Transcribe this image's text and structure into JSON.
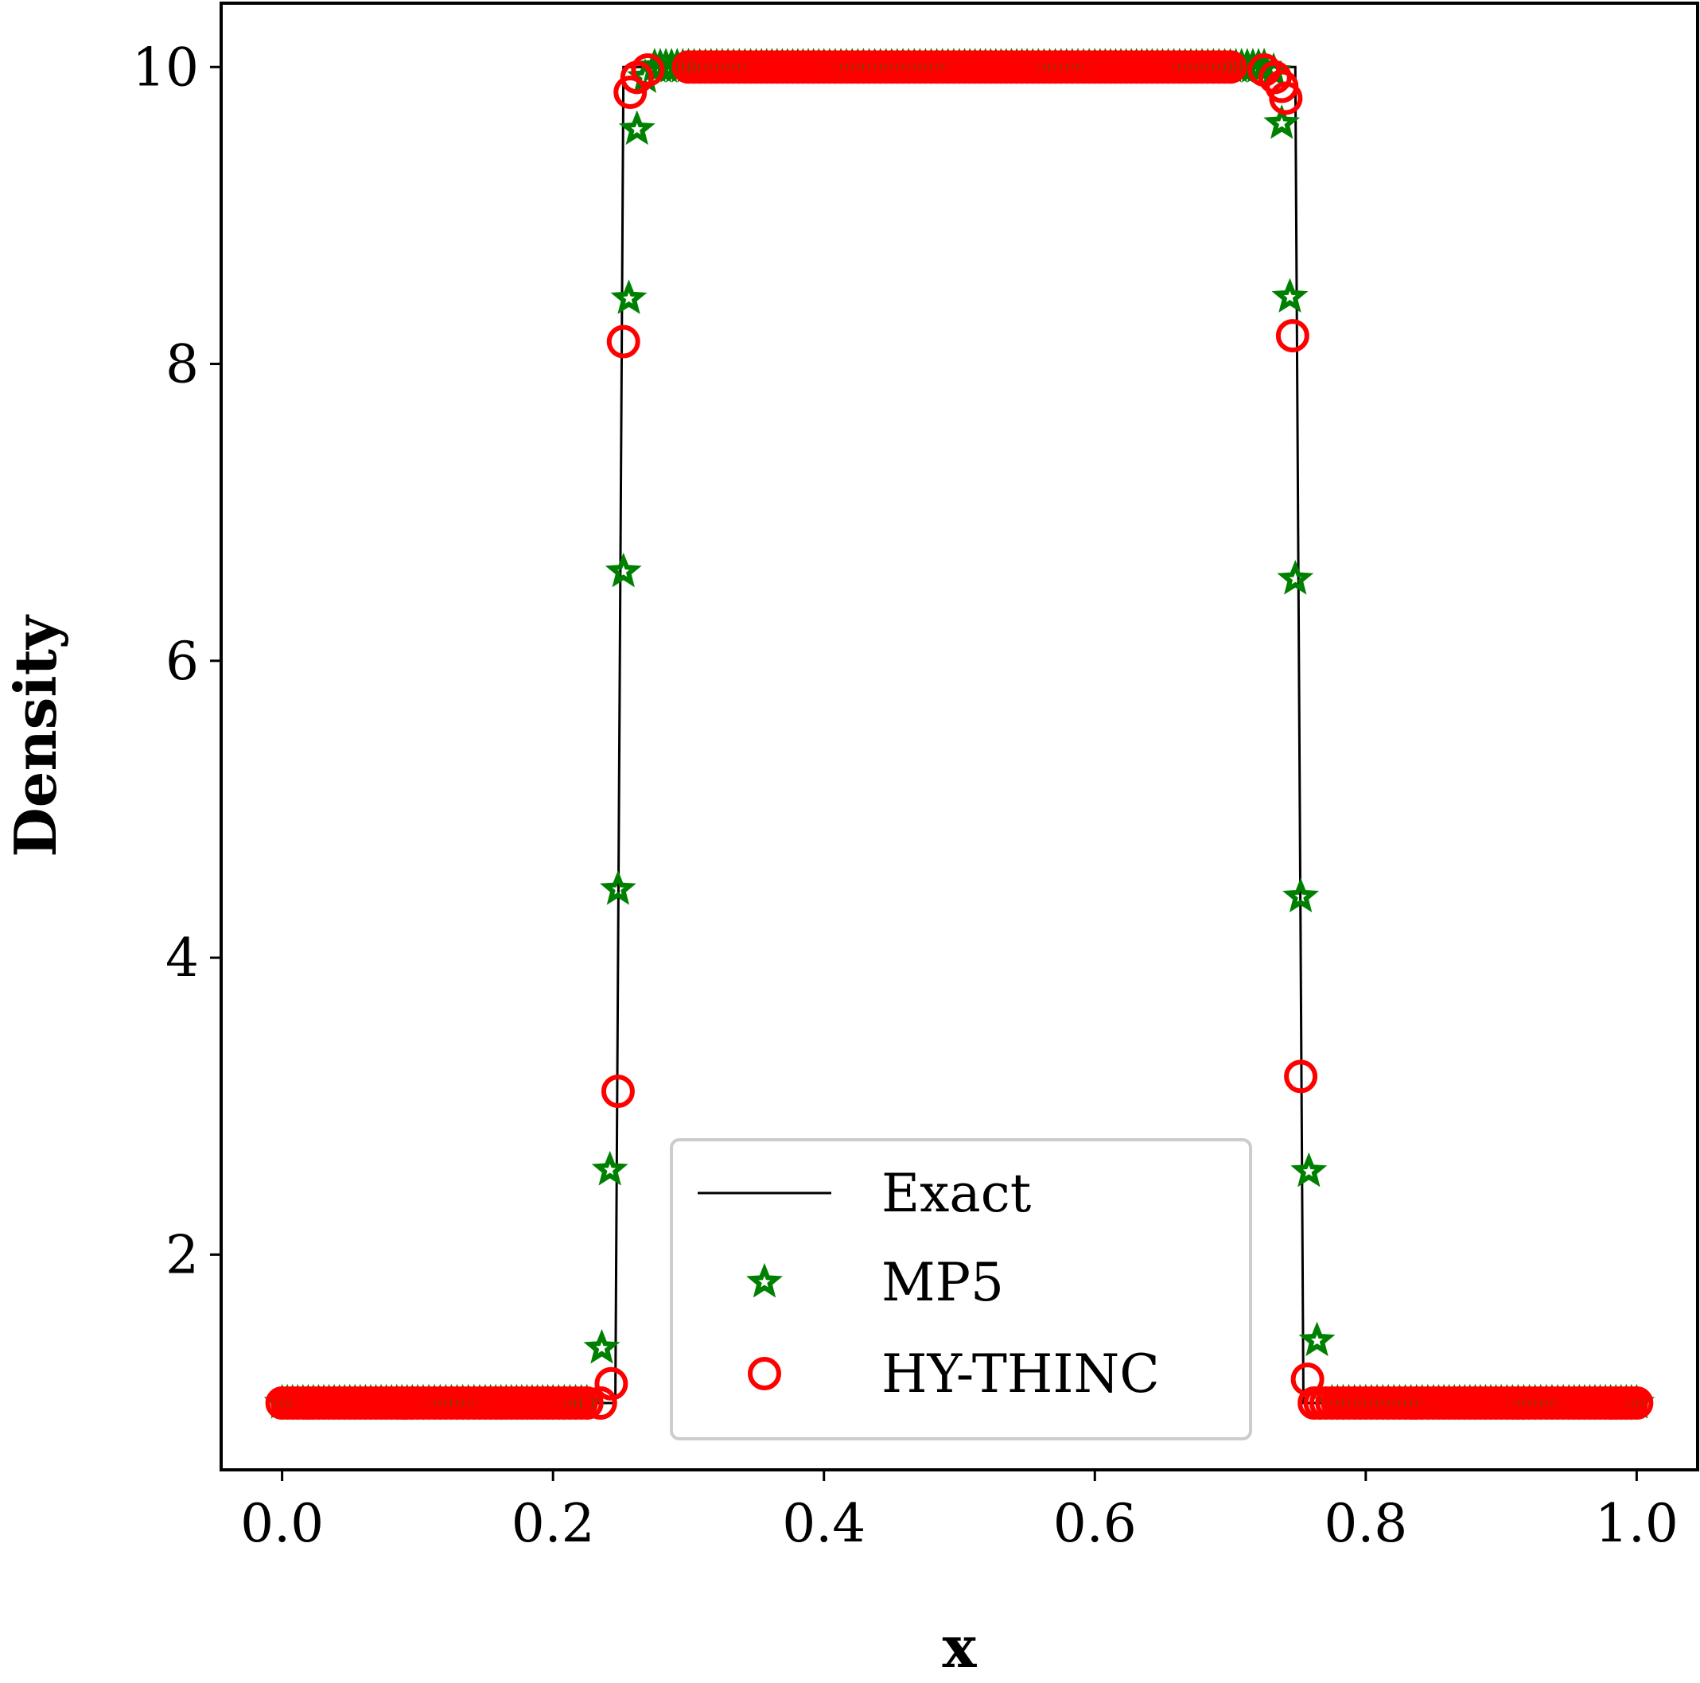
{
  "chart_data": {
    "type": "line",
    "title": "",
    "xlabel": "x",
    "ylabel": "Density",
    "xlim": [
      -0.045,
      1.045
    ],
    "ylim": [
      0.55,
      10.43
    ],
    "xticks": [
      0.0,
      0.2,
      0.4,
      0.6,
      0.8,
      1.0
    ],
    "xtick_labels": [
      "0.0",
      "0.2",
      "0.4",
      "0.6",
      "0.8",
      "1.0"
    ],
    "yticks": [
      2,
      4,
      6,
      8,
      10
    ],
    "ytick_labels": [
      "2",
      "4",
      "6",
      "8",
      "10"
    ],
    "grid": false,
    "legend_position": "lower center",
    "series": [
      {
        "name": "Exact",
        "style": "line",
        "color": "#000000",
        "x": [
          0.0,
          0.246,
          0.252,
          0.748,
          0.754,
          1.0
        ],
        "y": [
          1.0,
          1.0,
          10.0,
          10.0,
          1.0,
          1.0
        ]
      },
      {
        "name": "MP5",
        "style": "star-marker",
        "color": "#008000",
        "x": [
          0.0,
          0.05,
          0.1,
          0.15,
          0.2,
          0.225,
          0.236,
          0.242,
          0.248,
          0.252,
          0.256,
          0.262,
          0.268,
          0.275,
          0.3,
          0.35,
          0.4,
          0.45,
          0.5,
          0.55,
          0.6,
          0.65,
          0.7,
          0.725,
          0.732,
          0.738,
          0.744,
          0.748,
          0.752,
          0.758,
          0.764,
          0.775,
          0.8,
          0.85,
          0.9,
          0.95,
          1.0
        ],
        "y": [
          1.0,
          1.0,
          1.0,
          1.0,
          1.0,
          1.0,
          1.37,
          2.57,
          4.46,
          6.6,
          8.44,
          9.58,
          9.93,
          10.0,
          10.0,
          10.0,
          10.0,
          10.0,
          10.0,
          10.0,
          10.0,
          10.0,
          10.0,
          10.0,
          9.97,
          9.62,
          8.45,
          6.55,
          4.41,
          2.56,
          1.42,
          1.0,
          1.0,
          1.0,
          1.0,
          1.0,
          1.0
        ]
      },
      {
        "name": "HY-THINC",
        "style": "circle-marker",
        "color": "#ff0000",
        "x": [
          0.0,
          0.05,
          0.1,
          0.15,
          0.2,
          0.225,
          0.235,
          0.243,
          0.248,
          0.252,
          0.257,
          0.262,
          0.27,
          0.3,
          0.35,
          0.4,
          0.45,
          0.5,
          0.55,
          0.6,
          0.65,
          0.7,
          0.725,
          0.733,
          0.738,
          0.741,
          0.746,
          0.752,
          0.757,
          0.762,
          0.775,
          0.8,
          0.85,
          0.9,
          0.95,
          1.0
        ],
        "y": [
          1.0,
          1.0,
          1.0,
          1.0,
          1.0,
          1.0,
          1.0,
          1.13,
          3.1,
          8.15,
          9.83,
          9.93,
          9.98,
          10.0,
          10.0,
          10.0,
          10.0,
          10.0,
          10.0,
          10.0,
          10.0,
          10.0,
          9.98,
          9.93,
          9.87,
          9.79,
          8.19,
          3.2,
          1.16,
          1.0,
          1.0,
          1.0,
          1.0,
          1.0,
          1.0,
          1.0
        ]
      }
    ]
  }
}
